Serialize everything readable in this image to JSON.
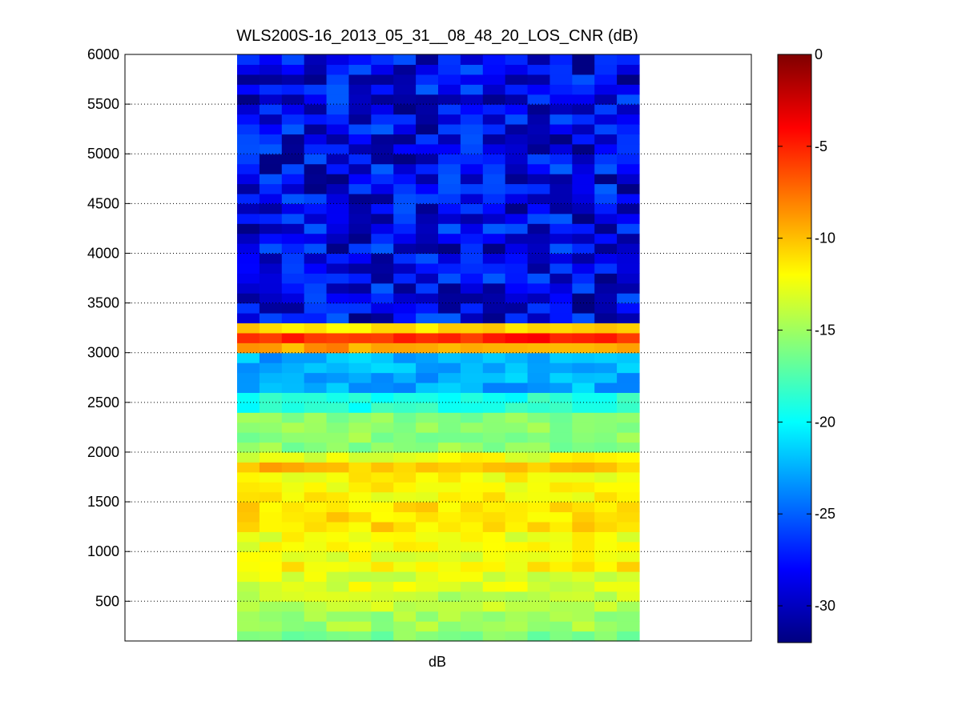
{
  "chart_data": {
    "type": "heatmap",
    "title": "WLS200S-16_2013_05_31__08_48_20_LOS_CNR (dB)",
    "xlabel": "dB",
    "ylabel": "",
    "ylim": [
      100,
      6000
    ],
    "yticks": [
      500,
      1000,
      1500,
      2000,
      2500,
      3000,
      3500,
      4000,
      4500,
      5000,
      5500,
      6000
    ],
    "grid": true,
    "colormap": "jet",
    "colorbar": {
      "range": [
        -32,
        0
      ],
      "ticks": [
        0,
        -5,
        -10,
        -15,
        -20,
        -25,
        -30
      ]
    },
    "columns": 18,
    "rows": [
      {
        "altitude_range": [
          100,
          200
        ],
        "mean_cnr": -16
      },
      {
        "altitude_range": [
          200,
          400
        ],
        "mean_cnr": -15
      },
      {
        "altitude_range": [
          400,
          600
        ],
        "mean_cnr": -14
      },
      {
        "altitude_range": [
          600,
          800
        ],
        "mean_cnr": -13
      },
      {
        "altitude_range": [
          800,
          900
        ],
        "mean_cnr": -11.5
      },
      {
        "altitude_range": [
          900,
          1200
        ],
        "mean_cnr": -12.5
      },
      {
        "altitude_range": [
          1200,
          1500
        ],
        "mean_cnr": -11
      },
      {
        "altitude_range": [
          1500,
          1800
        ],
        "mean_cnr": -12
      },
      {
        "altitude_range": [
          1800,
          1900
        ],
        "mean_cnr": -10
      },
      {
        "altitude_range": [
          1900,
          2000
        ],
        "mean_cnr": -12.5
      },
      {
        "altitude_range": [
          2000,
          2400
        ],
        "mean_cnr": -15.5
      },
      {
        "altitude_range": [
          2400,
          2600
        ],
        "mean_cnr": -19
      },
      {
        "altitude_range": [
          2600,
          3000
        ],
        "mean_cnr": -22.5
      },
      {
        "altitude_range": [
          3000,
          3100
        ],
        "mean_cnr": -9
      },
      {
        "altitude_range": [
          3100,
          3200
        ],
        "mean_cnr": -5
      },
      {
        "altitude_range": [
          3200,
          3300
        ],
        "mean_cnr": -11
      },
      {
        "altitude_range": [
          3300,
          6000
        ],
        "mean_cnr": -28.5
      }
    ],
    "extra_rows_note": ""
  },
  "colors": {
    "axis": "#000000",
    "grid": "#000000",
    "background": "#ffffff"
  }
}
